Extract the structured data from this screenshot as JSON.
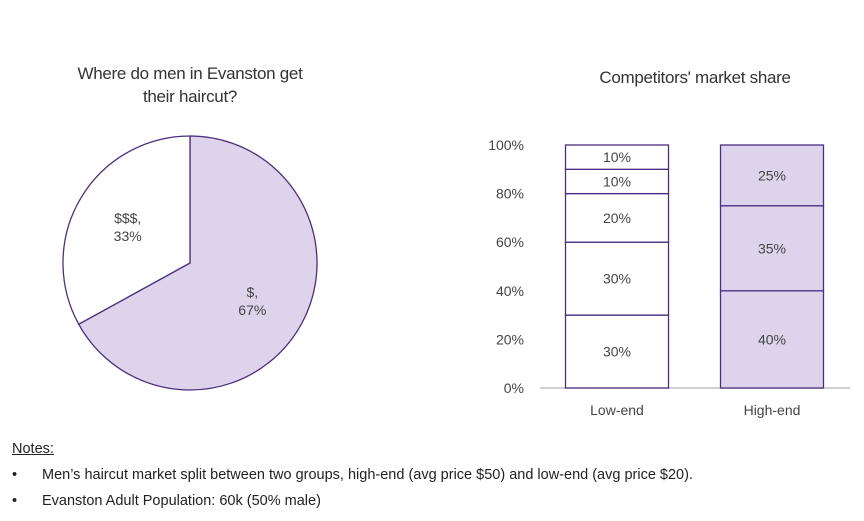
{
  "chart_data": [
    {
      "type": "pie",
      "title": "Where do men in Evanston get their haircut?",
      "slices": [
        {
          "label": "$,",
          "value": 67,
          "value_label": "67%"
        },
        {
          "label": "$$$,",
          "value": 33,
          "value_label": "33%"
        }
      ],
      "colors": {
        "$,": "#ddd4ec",
        "$$$,": "#ffffff",
        "stroke": "#4b2e83"
      }
    },
    {
      "type": "bar",
      "stacked": true,
      "title": "Competitors' market share",
      "categories": [
        "Low-end",
        "High-end"
      ],
      "stacks": [
        {
          "category": "Low-end",
          "segments": [
            30,
            30,
            20,
            10,
            10
          ],
          "labels": [
            "30%",
            "30%",
            "20%",
            "10%",
            "10%"
          ],
          "fill": "#ffffff"
        },
        {
          "category": "High-end",
          "segments": [
            40,
            35,
            25
          ],
          "labels": [
            "40%",
            "35%",
            "25%"
          ],
          "fill": "#ddd4ec"
        }
      ],
      "ylim": [
        0,
        100
      ],
      "yticks": [
        "0%",
        "20%",
        "40%",
        "60%",
        "80%",
        "100%"
      ],
      "stroke": "#4b2e83"
    }
  ],
  "notes": {
    "heading": "Notes:",
    "bullet": "•",
    "items": [
      "Men’s haircut market split between two groups, high-end (avg price $50) and low-end (avg price $20).",
      "Evanston Adult Population: 60k (50% male)"
    ]
  }
}
